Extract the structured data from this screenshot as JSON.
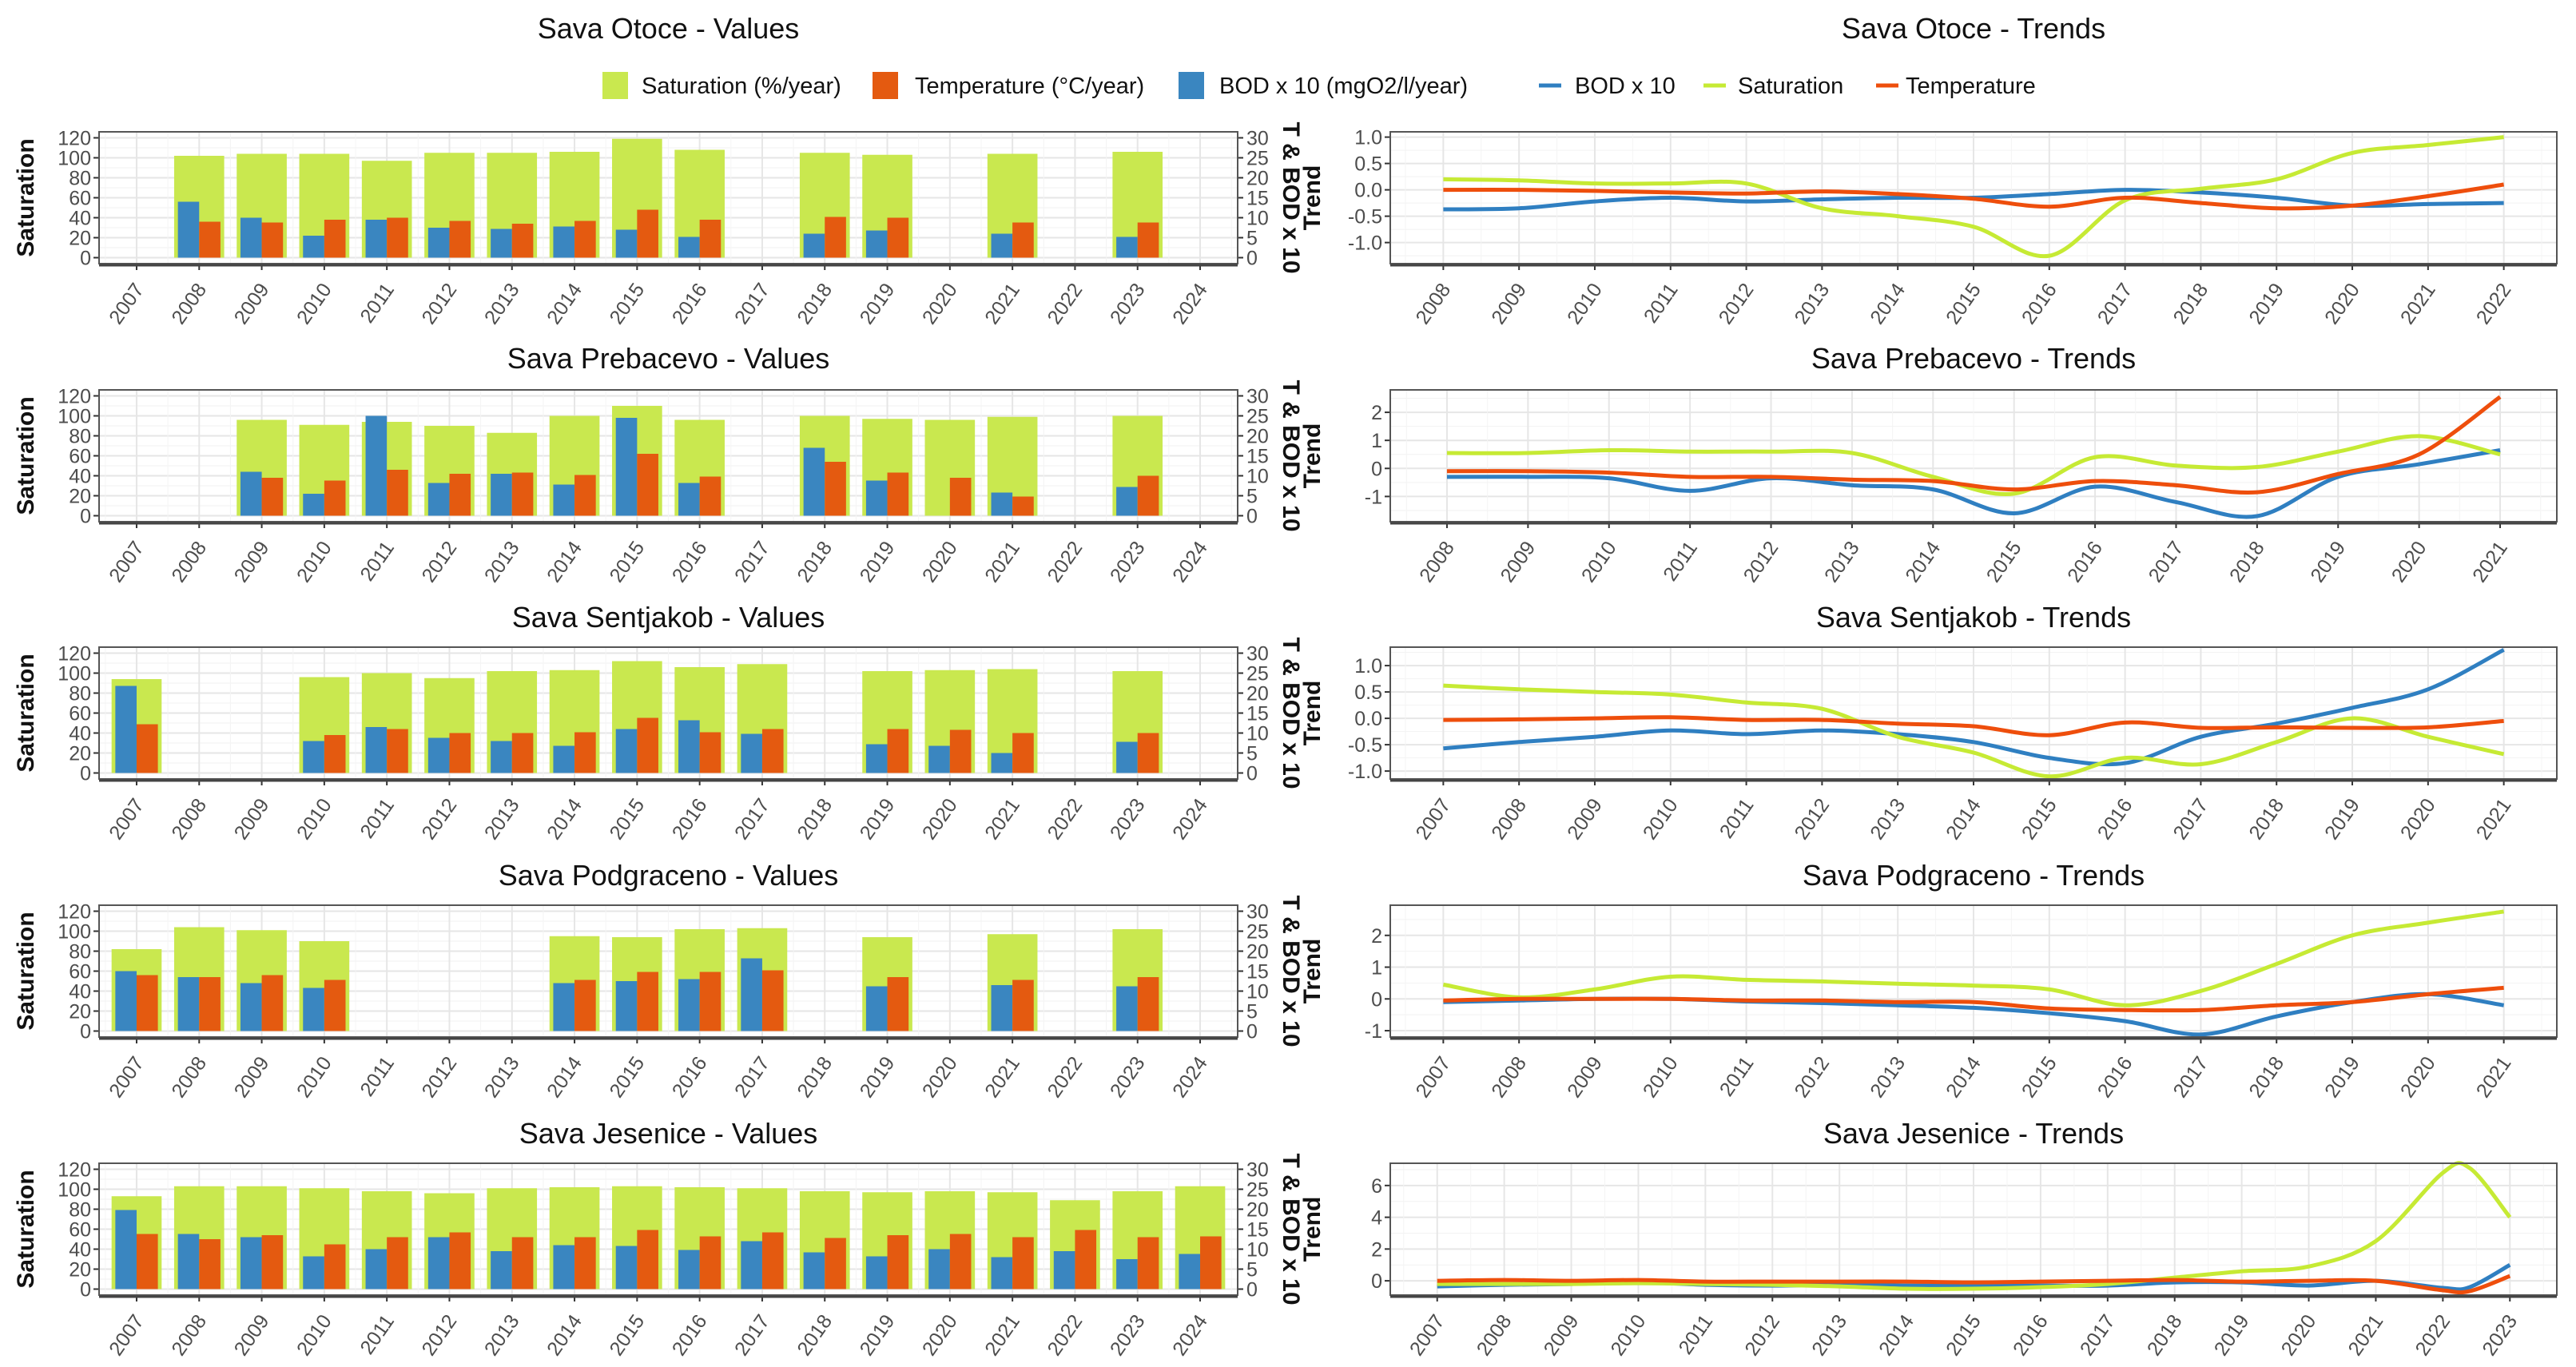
{
  "colors": {
    "saturation": "#c9e84f",
    "temperature": "#e45a10",
    "bod": "#3a86c0",
    "line_saturation": "#c6ea34",
    "line_temperature": "#ee4e0c",
    "line_bod": "#2f7fc1"
  },
  "legend": {
    "bars": [
      "Saturation (%/year)",
      "Temperature (°C/year)",
      "BOD x 10 (mgO2/l/year)"
    ],
    "lines": [
      "BOD x 10",
      "Saturation",
      "Temperature"
    ]
  },
  "chart_data": [
    {
      "type": "bar",
      "title": "Sava Otoce - Values",
      "ylabel": "Saturation",
      "y2label": "T & BOD x 10",
      "ylim": [
        0,
        120
      ],
      "y2lim": [
        0,
        30
      ],
      "yticks": [
        0,
        20,
        40,
        60,
        80,
        100,
        120
      ],
      "y2ticks": [
        0,
        5,
        10,
        15,
        20,
        25,
        30
      ],
      "categories": [
        2007,
        2008,
        2009,
        2010,
        2011,
        2012,
        2013,
        2014,
        2015,
        2016,
        2017,
        2018,
        2019,
        2020,
        2021,
        2022,
        2023,
        2024
      ],
      "series": [
        {
          "name": "Saturation (%/year)",
          "axis": "left",
          "values": [
            null,
            102,
            104,
            104,
            97,
            105,
            105,
            106,
            119,
            108,
            null,
            105,
            103,
            null,
            104,
            null,
            106,
            null
          ]
        },
        {
          "name": "BOD x 10 (mgO2/l/year)",
          "axis": "right",
          "values": [
            null,
            14,
            10,
            5.5,
            9.5,
            7.5,
            7.2,
            7.8,
            7,
            5.2,
            null,
            6,
            6.8,
            null,
            6,
            null,
            5.2,
            null
          ]
        },
        {
          "name": "Temperature (°C/year)",
          "axis": "right",
          "values": [
            null,
            9,
            8.8,
            9.5,
            10,
            9.2,
            8.5,
            9.2,
            12,
            9.5,
            null,
            10.2,
            10,
            null,
            8.8,
            null,
            8.8,
            null
          ]
        }
      ]
    },
    {
      "type": "line",
      "title": "Sava Otoce - Trends",
      "ylabel": "Trend",
      "ylim": [
        -1.4,
        1.1
      ],
      "yticks": [
        "-1.0",
        "-0.5",
        "0.0",
        "0.5",
        "1.0"
      ],
      "x": [
        2008,
        2009,
        2010,
        2011,
        2012,
        2013,
        2014,
        2015,
        2016,
        2017,
        2018,
        2019,
        2020,
        2021,
        2022
      ],
      "series": [
        {
          "name": "BOD x 10",
          "values": [
            -0.37,
            -0.35,
            -0.22,
            -0.15,
            -0.22,
            -0.18,
            -0.15,
            -0.15,
            -0.08,
            0.0,
            -0.05,
            -0.15,
            -0.3,
            -0.27,
            -0.25
          ]
        },
        {
          "name": "Saturation",
          "values": [
            0.2,
            0.18,
            0.12,
            0.12,
            0.12,
            -0.35,
            -0.5,
            -0.7,
            -1.25,
            -0.2,
            0.02,
            0.2,
            0.7,
            0.85,
            1.0
          ]
        },
        {
          "name": "Temperature",
          "values": [
            0,
            0,
            -0.02,
            -0.05,
            -0.07,
            -0.03,
            -0.08,
            -0.17,
            -0.32,
            -0.15,
            -0.25,
            -0.35,
            -0.3,
            -0.12,
            0.1
          ]
        }
      ]
    },
    {
      "type": "bar",
      "title": "Sava Prebacevo - Values",
      "ylabel": "Saturation",
      "y2label": "T & BOD x 10",
      "ylim": [
        0,
        120
      ],
      "y2lim": [
        0,
        30
      ],
      "yticks": [
        0,
        20,
        40,
        60,
        80,
        100,
        120
      ],
      "y2ticks": [
        0,
        5,
        10,
        15,
        20,
        25,
        30
      ],
      "categories": [
        2007,
        2008,
        2009,
        2010,
        2011,
        2012,
        2013,
        2014,
        2015,
        2016,
        2017,
        2018,
        2019,
        2020,
        2021,
        2022,
        2023,
        2024
      ],
      "series": [
        {
          "name": "Saturation (%/year)",
          "axis": "left",
          "values": [
            null,
            null,
            96,
            91,
            94,
            90,
            83,
            100,
            110,
            96,
            null,
            100,
            97,
            96,
            99,
            null,
            100,
            null
          ]
        },
        {
          "name": "BOD x 10 (mgO2/l/year)",
          "axis": "right",
          "values": [
            null,
            null,
            11,
            5.5,
            25,
            8.2,
            10.5,
            7.8,
            24.5,
            8.2,
            null,
            17,
            8.8,
            null,
            5.8,
            null,
            7.2,
            null
          ]
        },
        {
          "name": "Temperature (°C/year)",
          "axis": "right",
          "values": [
            null,
            null,
            9.5,
            8.8,
            11.5,
            10.5,
            10.8,
            10.2,
            15.5,
            9.8,
            null,
            13.5,
            10.8,
            9.5,
            4.8,
            null,
            10,
            null
          ]
        }
      ]
    },
    {
      "type": "line",
      "title": "Sava Prebacevo - Trends",
      "ylabel": "Trend",
      "ylim": [
        -1.9,
        2.8
      ],
      "yticks": [
        "-1",
        "0",
        "1",
        "2"
      ],
      "x": [
        2008,
        2009,
        2010,
        2011,
        2012,
        2013,
        2014,
        2015,
        2016,
        2017,
        2018,
        2019,
        2020,
        2021
      ],
      "series": [
        {
          "name": "BOD x 10",
          "values": [
            -0.3,
            -0.3,
            -0.35,
            -0.8,
            -0.35,
            -0.6,
            -0.75,
            -1.6,
            -0.65,
            -1.2,
            -1.7,
            -0.3,
            0.15,
            0.65
          ]
        },
        {
          "name": "Saturation",
          "values": [
            0.55,
            0.55,
            0.65,
            0.6,
            0.6,
            0.55,
            -0.3,
            -0.9,
            0.4,
            0.1,
            0.05,
            0.6,
            1.15,
            0.5
          ]
        },
        {
          "name": "Temperature",
          "values": [
            -0.1,
            -0.1,
            -0.15,
            -0.3,
            -0.3,
            -0.4,
            -0.45,
            -0.75,
            -0.45,
            -0.6,
            -0.85,
            -0.2,
            0.5,
            2.55
          ]
        }
      ]
    },
    {
      "type": "bar",
      "title": "Sava Sentjakob - Values",
      "ylabel": "Saturation",
      "y2label": "T & BOD x 10",
      "ylim": [
        0,
        120
      ],
      "y2lim": [
        0,
        30
      ],
      "yticks": [
        0,
        20,
        40,
        60,
        80,
        100,
        120
      ],
      "y2ticks": [
        0,
        5,
        10,
        15,
        20,
        25,
        30
      ],
      "categories": [
        2007,
        2008,
        2009,
        2010,
        2011,
        2012,
        2013,
        2014,
        2015,
        2016,
        2017,
        2018,
        2019,
        2020,
        2021,
        2022,
        2023,
        2024
      ],
      "series": [
        {
          "name": "Saturation (%/year)",
          "axis": "left",
          "values": [
            94,
            null,
            null,
            96,
            100,
            95,
            102,
            103,
            112,
            106,
            109,
            null,
            102,
            103,
            104,
            null,
            102,
            null
          ]
        },
        {
          "name": "BOD x 10 (mgO2/l/year)",
          "axis": "right",
          "values": [
            21.8,
            null,
            null,
            8,
            11.5,
            8.8,
            8,
            6.8,
            11,
            13.2,
            9.8,
            null,
            7.2,
            6.8,
            5,
            null,
            7.8,
            null
          ]
        },
        {
          "name": "Temperature (°C/year)",
          "axis": "right",
          "values": [
            12.2,
            null,
            null,
            9.5,
            11,
            10,
            10,
            10.2,
            13.8,
            10.2,
            11,
            null,
            11,
            10.8,
            10,
            null,
            10,
            null
          ]
        }
      ]
    },
    {
      "type": "line",
      "title": "Sava Sentjakob - Trends",
      "ylabel": "Trend",
      "ylim": [
        -1.15,
        1.35
      ],
      "yticks": [
        "-1.0",
        "-0.5",
        "0.0",
        "0.5",
        "1.0"
      ],
      "x": [
        2007,
        2008,
        2009,
        2010,
        2011,
        2012,
        2013,
        2014,
        2015,
        2016,
        2017,
        2018,
        2019,
        2020,
        2021
      ],
      "series": [
        {
          "name": "BOD x 10",
          "values": [
            -0.57,
            -0.45,
            -0.35,
            -0.23,
            -0.3,
            -0.23,
            -0.3,
            -0.45,
            -0.75,
            -0.85,
            -0.35,
            -0.1,
            0.2,
            0.55,
            1.3
          ]
        },
        {
          "name": "Saturation",
          "values": [
            0.62,
            0.55,
            0.5,
            0.45,
            0.3,
            0.18,
            -0.35,
            -0.65,
            -1.1,
            -0.75,
            -0.87,
            -0.45,
            0.0,
            -0.35,
            -0.68
          ]
        },
        {
          "name": "Temperature",
          "values": [
            -0.03,
            -0.02,
            0.0,
            0.02,
            -0.03,
            -0.03,
            -0.1,
            -0.15,
            -0.32,
            -0.08,
            -0.18,
            -0.17,
            -0.18,
            -0.17,
            -0.05
          ]
        }
      ]
    },
    {
      "type": "bar",
      "title": "Sava Podgraceno - Values",
      "ylabel": "Saturation",
      "y2label": "T & BOD x 10",
      "ylim": [
        0,
        120
      ],
      "y2lim": [
        0,
        30
      ],
      "yticks": [
        0,
        20,
        40,
        60,
        80,
        100,
        120
      ],
      "y2ticks": [
        0,
        5,
        10,
        15,
        20,
        25,
        30
      ],
      "categories": [
        2007,
        2008,
        2009,
        2010,
        2011,
        2012,
        2013,
        2014,
        2015,
        2016,
        2017,
        2018,
        2019,
        2020,
        2021,
        2022,
        2023,
        2024
      ],
      "series": [
        {
          "name": "Saturation (%/year)",
          "axis": "left",
          "values": [
            82,
            104,
            101,
            90,
            null,
            null,
            null,
            95,
            94,
            102,
            103,
            null,
            94,
            null,
            97,
            null,
            102,
            null
          ]
        },
        {
          "name": "BOD x 10 (mgO2/l/year)",
          "axis": "right",
          "values": [
            15,
            13.5,
            12,
            10.8,
            null,
            null,
            null,
            12,
            12.5,
            13,
            18.2,
            null,
            11.2,
            null,
            11.5,
            null,
            11.2,
            null
          ]
        },
        {
          "name": "Temperature (°C/year)",
          "axis": "right",
          "values": [
            14,
            13.5,
            14,
            12.8,
            null,
            null,
            null,
            12.8,
            14.8,
            14.8,
            15.2,
            null,
            13.5,
            null,
            12.8,
            null,
            13.5,
            null
          ]
        }
      ]
    },
    {
      "type": "line",
      "title": "Sava Podgraceno - Trends",
      "ylabel": "Trend",
      "ylim": [
        -1.2,
        2.95
      ],
      "yticks": [
        "-1",
        "0",
        "1",
        "2"
      ],
      "x": [
        2007,
        2008,
        2009,
        2010,
        2011,
        2012,
        2013,
        2014,
        2015,
        2016,
        2017,
        2018,
        2019,
        2020,
        2021
      ],
      "series": [
        {
          "name": "BOD x 10",
          "values": [
            -0.1,
            -0.05,
            0,
            0,
            -0.08,
            -0.13,
            -0.2,
            -0.28,
            -0.45,
            -0.7,
            -1.12,
            -0.55,
            -0.1,
            0.15,
            -0.2
          ]
        },
        {
          "name": "Saturation",
          "values": [
            0.45,
            0.05,
            0.3,
            0.7,
            0.6,
            0.55,
            0.48,
            0.42,
            0.3,
            -0.2,
            0.25,
            1.1,
            2.0,
            2.4,
            2.75
          ]
        },
        {
          "name": "Temperature",
          "values": [
            -0.05,
            0,
            0,
            0,
            -0.05,
            -0.05,
            -0.1,
            -0.1,
            -0.3,
            -0.35,
            -0.35,
            -0.2,
            -0.1,
            0.15,
            0.35
          ]
        }
      ]
    },
    {
      "type": "bar",
      "title": "Sava Jesenice - Values",
      "ylabel": "Saturation",
      "y2label": "T & BOD x 10",
      "ylim": [
        0,
        120
      ],
      "y2lim": [
        0,
        30
      ],
      "yticks": [
        0,
        20,
        40,
        60,
        80,
        100,
        120
      ],
      "y2ticks": [
        0,
        5,
        10,
        15,
        20,
        25,
        30
      ],
      "categories": [
        2007,
        2008,
        2009,
        2010,
        2011,
        2012,
        2013,
        2014,
        2015,
        2016,
        2017,
        2018,
        2019,
        2020,
        2021,
        2022,
        2023,
        2024
      ],
      "series": [
        {
          "name": "Saturation (%/year)",
          "axis": "left",
          "values": [
            93,
            103,
            103,
            101,
            98,
            96,
            101,
            102,
            103,
            102,
            101,
            98,
            97,
            98,
            97,
            89,
            98,
            103
          ]
        },
        {
          "name": "BOD x 10 (mgO2/l/year)",
          "axis": "right",
          "values": [
            19.8,
            13.8,
            13,
            8.2,
            10,
            13,
            9.5,
            11,
            10.8,
            9.8,
            12,
            9.2,
            8.2,
            10,
            8,
            9.5,
            7.5,
            8.8
          ]
        },
        {
          "name": "Temperature (°C/year)",
          "axis": "right",
          "values": [
            13.8,
            12.5,
            13.5,
            11.2,
            13,
            14.2,
            13,
            13,
            14.8,
            13.2,
            14.2,
            12.8,
            13.5,
            13.8,
            13,
            14.8,
            13,
            13.2
          ]
        }
      ]
    },
    {
      "type": "line",
      "title": "Sava Jesenice - Trends",
      "ylabel": "Trend",
      "ylim": [
        -0.9,
        7.4
      ],
      "yticks": [
        "0",
        "2",
        "4",
        "6"
      ],
      "xticks": [
        2007,
        2008,
        2009,
        2010,
        2011,
        2012,
        2013,
        2014,
        2015,
        2016,
        2017,
        2018,
        2019,
        2020,
        2021,
        2022,
        2023
      ],
      "x": [
        2007,
        2008,
        2009,
        2010,
        2011,
        2012,
        2013,
        2014,
        2015,
        2016,
        2017,
        2018,
        2019,
        2020,
        2021,
        2022,
        2022.4,
        2023
      ],
      "series": [
        {
          "name": "BOD x 10",
          "values": [
            -0.35,
            -0.25,
            -0.2,
            -0.1,
            -0.25,
            -0.3,
            -0.25,
            -0.3,
            -0.3,
            -0.3,
            -0.3,
            -0.1,
            -0.1,
            -0.3,
            0.0,
            -0.45,
            -0.4,
            1.0
          ]
        },
        {
          "name": "Saturation",
          "values": [
            -0.2,
            -0.2,
            -0.2,
            -0.15,
            -0.2,
            -0.25,
            -0.35,
            -0.5,
            -0.5,
            -0.4,
            -0.2,
            0.2,
            0.6,
            0.9,
            2.5,
            6.8,
            7.1,
            4.0
          ]
        },
        {
          "name": "Temperature",
          "values": [
            0,
            0.05,
            0,
            0.05,
            -0.05,
            -0.05,
            -0.05,
            -0.05,
            -0.1,
            -0.05,
            0,
            0.05,
            -0.05,
            0,
            0,
            -0.6,
            -0.65,
            0.3
          ]
        }
      ]
    }
  ]
}
